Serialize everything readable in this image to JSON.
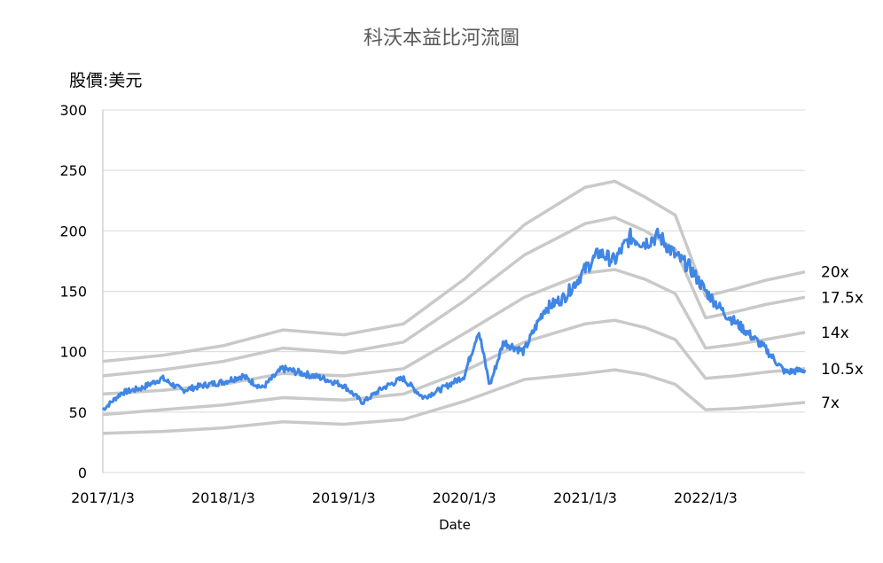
{
  "chart_data": {
    "type": "line",
    "title": "科沃本益比河流圖",
    "ylabel": "股價:美元",
    "xlabel": "Date",
    "ylim": [
      0,
      300
    ],
    "yticks": [
      0,
      50,
      100,
      150,
      200,
      250,
      300
    ],
    "xticks": [
      "2017/1/3",
      "2018/1/3",
      "2019/1/3",
      "2020/1/3",
      "2021/1/3",
      "2022/1/3"
    ],
    "x_range": [
      "2017-01-03",
      "2022-10-31"
    ],
    "grid": true,
    "colors": {
      "price": "#3f86e6",
      "bands": "#c9c9c9"
    },
    "x": [
      "2017-01-03",
      "2017-07-03",
      "2018-01-03",
      "2018-07-03",
      "2019-01-03",
      "2019-07-03",
      "2020-01-03",
      "2020-07-03",
      "2021-01-03",
      "2021-04-03",
      "2021-07-03",
      "2021-10-03",
      "2022-01-03",
      "2022-04-03",
      "2022-07-03",
      "2022-10-31"
    ],
    "bands": [
      {
        "name": "7x",
        "values": [
          32.5,
          34,
          37,
          42,
          40,
          44,
          59,
          77,
          82,
          85,
          81,
          73,
          52,
          53,
          55,
          58
        ]
      },
      {
        "name": "10.5x",
        "values": [
          48,
          52,
          56,
          62,
          60,
          65,
          84,
          108,
          123,
          126,
          120,
          110,
          78,
          80,
          83,
          86
        ]
      },
      {
        "name": "14x",
        "values": [
          65,
          68,
          73,
          82,
          80,
          86,
          115,
          145,
          165,
          168,
          160,
          148,
          103,
          106,
          110,
          116
        ]
      },
      {
        "name": "17.5x",
        "values": [
          80,
          85,
          92,
          103,
          99,
          108,
          142,
          180,
          206,
          211,
          200,
          185,
          128,
          133,
          139,
          145
        ]
      },
      {
        "name": "20x",
        "values": [
          92,
          97,
          105,
          118,
          114,
          123,
          160,
          205,
          236,
          241,
          228,
          213,
          146,
          152,
          159,
          166
        ]
      }
    ],
    "price": {
      "x": [
        "2017-01-03",
        "2017-03-01",
        "2017-05-01",
        "2017-07-01",
        "2017-09-01",
        "2017-11-01",
        "2018-01-03",
        "2018-03-01",
        "2018-05-01",
        "2018-07-01",
        "2018-09-01",
        "2018-11-01",
        "2019-01-03",
        "2019-03-01",
        "2019-05-01",
        "2019-07-01",
        "2019-09-01",
        "2019-11-01",
        "2020-01-03",
        "2020-02-15",
        "2020-03-20",
        "2020-05-01",
        "2020-07-01",
        "2020-09-01",
        "2020-11-01",
        "2021-01-03",
        "2021-02-15",
        "2021-04-01",
        "2021-05-20",
        "2021-07-01",
        "2021-08-15",
        "2021-10-01",
        "2021-11-15",
        "2022-01-03",
        "2022-03-01",
        "2022-05-01",
        "2022-07-01",
        "2022-09-01",
        "2022-10-31"
      ],
      "values": [
        52,
        66,
        70,
        78,
        68,
        72,
        75,
        80,
        70,
        86,
        82,
        78,
        72,
        58,
        70,
        78,
        62,
        70,
        80,
        118,
        72,
        108,
        100,
        135,
        145,
        168,
        182,
        175,
        195,
        190,
        196,
        180,
        170,
        150,
        132,
        118,
        103,
        83,
        85
      ]
    }
  }
}
